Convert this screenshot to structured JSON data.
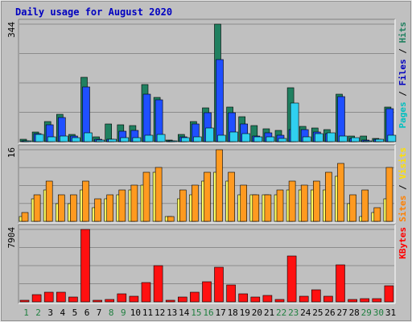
{
  "chart_data": {
    "type": "bar",
    "title": "Daily usage for August 2020",
    "categories": [
      "1",
      "2",
      "3",
      "4",
      "5",
      "6",
      "7",
      "8",
      "9",
      "10",
      "11",
      "12",
      "13",
      "14",
      "15",
      "16",
      "17",
      "18",
      "19",
      "20",
      "21",
      "22",
      "23",
      "24",
      "25",
      "26",
      "27",
      "28",
      "29",
      "30",
      "31"
    ],
    "weekend_days": [
      "1",
      "2",
      "8",
      "9",
      "15",
      "16",
      "22",
      "23",
      "29",
      "30"
    ],
    "panels": [
      {
        "id": "hits-files-pages",
        "ymax_label": "344",
        "ymax": 344,
        "right_label_parts": [
          {
            "text": "Pages",
            "color": "#00c0c0"
          },
          {
            "text": " / ",
            "color": "#000000"
          },
          {
            "text": "Files",
            "color": "#0000c0"
          },
          {
            "text": " / ",
            "color": "#000000"
          },
          {
            "text": "Hits",
            "color": "#208060"
          }
        ],
        "series": [
          {
            "name": "Hits",
            "color": "#208060",
            "values": [
              6,
              28,
              58,
              80,
              22,
              188,
              14,
              52,
              49,
              46,
              168,
              130,
              5,
              21,
              60,
              100,
              344,
              102,
              74,
              46,
              38,
              33,
              158,
              45,
              40,
              35,
              140,
              16,
              17,
              9,
              102
            ]
          },
          {
            "name": "Files",
            "color": "#1f4fff",
            "values": [
              3,
              24,
              50,
              70,
              16,
              160,
              7,
              8,
              31,
              33,
              139,
              122,
              2,
              14,
              53,
              84,
              240,
              85,
              52,
              17,
              26,
              18,
              35,
              36,
              28,
              23,
              132,
              9,
              4,
              7,
              97
            ]
          },
          {
            "name": "Pages",
            "color": "#30d0f0",
            "values": [
              2,
              22,
              14,
              16,
              12,
              25,
              4,
              8,
              11,
              12,
              20,
              22,
              1,
              12,
              14,
              41,
              18,
              29,
              23,
              13,
              14,
              10,
              114,
              15,
              24,
              27,
              16,
              12,
              3,
              6,
              20
            ]
          }
        ]
      },
      {
        "id": "visits-sites",
        "ymax_label": "16",
        "ymax": 16,
        "right_label_parts": [
          {
            "text": "Sites",
            "color": "#ff8000"
          },
          {
            "text": " / ",
            "color": "#000000"
          },
          {
            "text": "Visits",
            "color": "#ffe000"
          }
        ],
        "series": [
          {
            "name": "Visits",
            "color": "#ffff60",
            "values": [
              1,
              5,
              7,
              4,
              4,
              7,
              3,
              5,
              6,
              7,
              8,
              11,
              1,
              5,
              6,
              9,
              11,
              9,
              6,
              6,
              6,
              6,
              7,
              7,
              7,
              7,
              10,
              4,
              1,
              2,
              5
            ]
          },
          {
            "name": "Sites",
            "color": "#ff9a20",
            "values": [
              2,
              6,
              9,
              6,
              6,
              9,
              5,
              6,
              7,
              8,
              11,
              12,
              1,
              7,
              8,
              11,
              16,
              11,
              8,
              6,
              6,
              7,
              9,
              8,
              9,
              11,
              13,
              6,
              7,
              3,
              12
            ]
          }
        ]
      },
      {
        "id": "kbytes",
        "ymax_label": "7904",
        "ymax": 7904,
        "right_label_parts": [
          {
            "text": "KBytes",
            "color": "#ff0000"
          }
        ],
        "series": [
          {
            "name": "KBytes",
            "color": "#ff1010",
            "values": [
              180,
              820,
              1010,
              1060,
              520,
              7904,
              210,
              260,
              840,
              580,
              2100,
              3920,
              160,
              520,
              1040,
              2200,
              3820,
              1830,
              860,
              520,
              740,
              300,
              5000,
              620,
              1360,
              600,
              4020,
              220,
              320,
              320,
              1780
            ]
          }
        ]
      }
    ]
  }
}
